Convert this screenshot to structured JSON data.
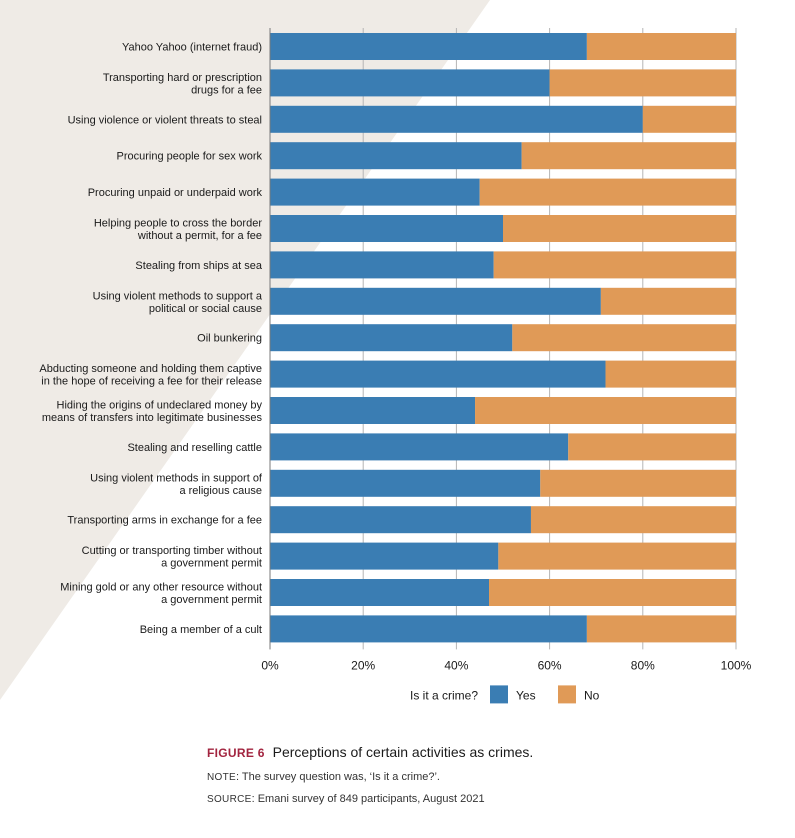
{
  "chart_data": {
    "type": "bar",
    "orientation": "horizontal",
    "stacked": true,
    "categories": [
      "Yahoo Yahoo (internet fraud)",
      "Transporting hard or prescription\ndrugs for a fee",
      "Using violence or violent threats to steal",
      "Procuring people for sex work",
      "Procuring unpaid or underpaid work",
      "Helping people to cross the border\nwithout a permit, for a fee",
      "Stealing from ships at sea",
      "Using violent methods to support a\npolitical or social cause",
      "Oil bunkering",
      "Abducting someone and holding them captive\nin the hope of receiving a fee for their release",
      "Hiding the origins of undeclared money by\nmeans of transfers into legitimate businesses",
      "Stealing and reselling cattle",
      "Using violent methods in support of\na religious cause",
      "Transporting arms in exchange for a fee",
      "Cutting or transporting timber without\na government permit",
      "Mining gold or any other resource without\na government permit",
      "Being a member of a cult"
    ],
    "series": [
      {
        "name": "Yes",
        "color": "#3a7db3",
        "values": [
          68,
          60,
          80,
          54,
          45,
          50,
          48,
          71,
          52,
          72,
          44,
          64,
          58,
          56,
          49,
          47,
          68
        ]
      },
      {
        "name": "No",
        "color": "#e09a57",
        "values": [
          32,
          40,
          20,
          46,
          55,
          50,
          52,
          29,
          48,
          28,
          56,
          36,
          42,
          44,
          51,
          53,
          32
        ]
      }
    ],
    "xlim": [
      0,
      100
    ],
    "x_ticks": [
      "0%",
      "20%",
      "40%",
      "60%",
      "80%",
      "100%"
    ],
    "grid": true,
    "legend": {
      "title": "Is it a crime?",
      "placement": "bottom"
    }
  },
  "caption": {
    "figure_label": "FIGURE 6",
    "title": "Perceptions of certain activities as crimes.",
    "note_label": "NOTE",
    "note_text": ": The survey question was, ‘Is it a crime?’.",
    "source_label": "SOURCE",
    "source_text": ": Emani survey of 849 participants, August 2021"
  },
  "colors": {
    "background_shape": "#efebe6",
    "axis": "#999999"
  }
}
